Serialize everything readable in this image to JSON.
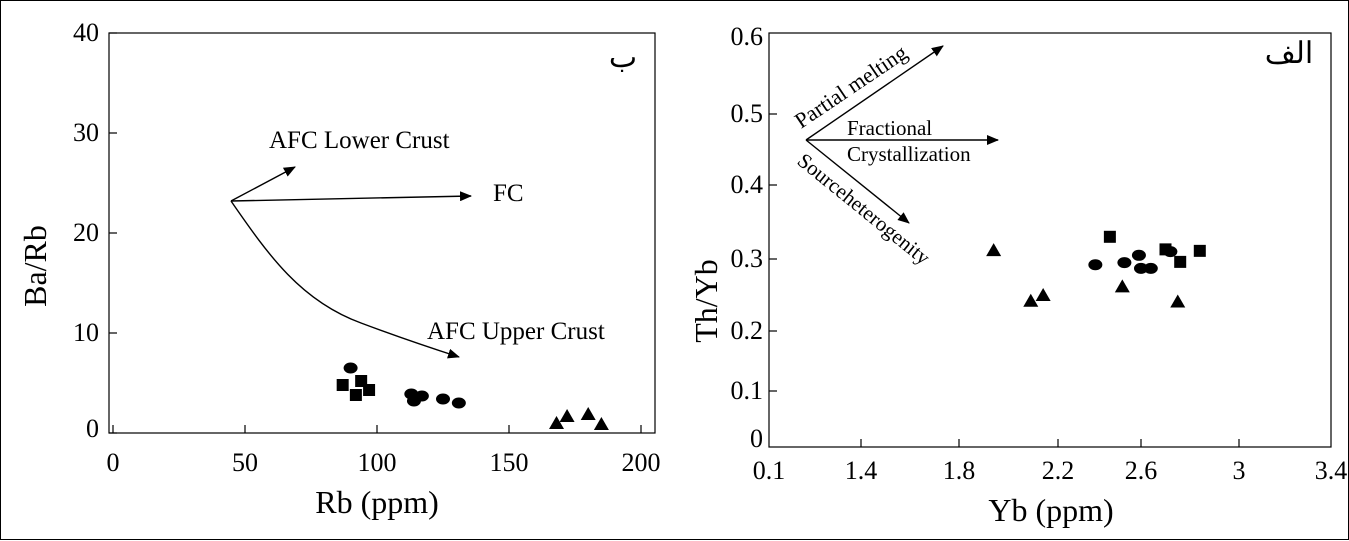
{
  "chart_data": [
    {
      "panel": "left",
      "type": "scatter",
      "panel_label": "ب",
      "xlabel": "Rb (ppm)",
      "ylabel": "Ba/Rb",
      "xlim": [
        0,
        200
      ],
      "ylim": [
        0,
        40
      ],
      "xticks": [
        "0",
        "50",
        "100",
        "150",
        "200"
      ],
      "yticks": [
        "0",
        "10",
        "20",
        "30",
        "40"
      ],
      "grid": false,
      "annotations": [
        "AFC Lower Crust",
        "FC",
        "AFC Upper Crust"
      ],
      "series": [
        {
          "marker": "circle",
          "points": [
            [
              90,
              6.5
            ],
            [
              113,
              3.9
            ],
            [
              114,
              3.2
            ],
            [
              117,
              3.7
            ],
            [
              125,
              3.4
            ],
            [
              131,
              3.0
            ]
          ]
        },
        {
          "marker": "square",
          "points": [
            [
              87,
              4.8
            ],
            [
              92,
              3.8
            ],
            [
              94,
              5.2
            ],
            [
              97,
              4.3
            ]
          ]
        },
        {
          "marker": "triangle",
          "points": [
            [
              168,
              1.0
            ],
            [
              172,
              1.7
            ],
            [
              180,
              1.9
            ],
            [
              185,
              0.9
            ]
          ]
        }
      ]
    },
    {
      "panel": "right",
      "type": "scatter",
      "panel_label": "الف",
      "xlabel": "Yb (ppm)",
      "ylabel": "Th/Yb",
      "xticks": [
        "0.1",
        "1.4",
        "1.8",
        "2.2",
        "2.6",
        "3",
        "3.4"
      ],
      "yticks": [
        "0",
        "0.1",
        "0.2",
        "0.3",
        "0.4",
        "0.5",
        "0.6"
      ],
      "grid": false,
      "annotations": [
        "Partial melting",
        "Fractional",
        "Crystallization",
        "Sourceheterogenity"
      ],
      "series": [
        {
          "marker": "circle",
          "points": [
            [
              2.38,
              0.292
            ],
            [
              2.52,
              0.295
            ],
            [
              2.59,
              0.305
            ],
            [
              2.6,
              0.287
            ],
            [
              2.64,
              0.287
            ],
            [
              2.72,
              0.31
            ]
          ]
        },
        {
          "marker": "square",
          "points": [
            [
              2.45,
              0.33
            ],
            [
              2.7,
              0.313
            ],
            [
              2.76,
              0.296
            ],
            [
              2.84,
              0.311
            ]
          ]
        },
        {
          "marker": "triangle",
          "points": [
            [
              1.94,
              0.312
            ],
            [
              2.09,
              0.242
            ],
            [
              2.14,
              0.25
            ],
            [
              2.51,
              0.262
            ],
            [
              2.75,
              0.241
            ]
          ]
        }
      ]
    }
  ]
}
